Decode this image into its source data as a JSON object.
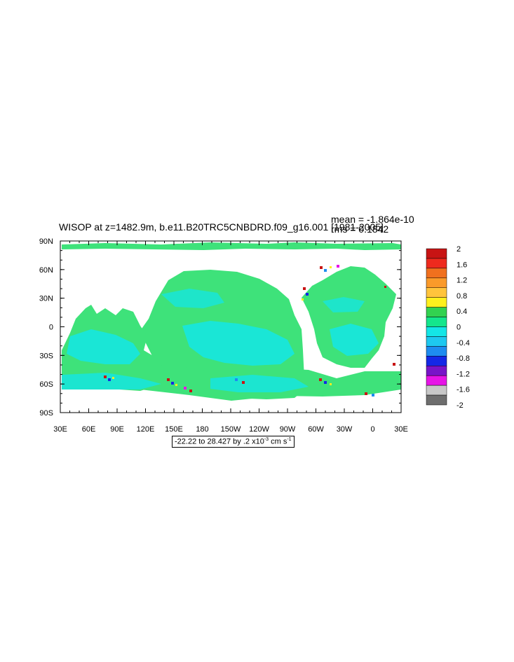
{
  "title": "WISOP at z=1482.9m, b.e11.B20TRC5CNBDRD.f09_g16.001 [1981-2005]",
  "stats": {
    "mean": "mean = -1.864e-10",
    "rms": "rms = 0.1842"
  },
  "axes": {
    "lat_labels": [
      "90N",
      "60N",
      "30N",
      "0",
      "30S",
      "60S",
      "90S"
    ],
    "lon_labels": [
      "30E",
      "60E",
      "90E",
      "120E",
      "150E",
      "180",
      "150W",
      "120W",
      "90W",
      "60W",
      "30W",
      "0",
      "30E"
    ]
  },
  "colorbar": {
    "labels": [
      "2",
      "1.6",
      "1.2",
      "0.8",
      "0.4",
      "0",
      "-0.4",
      "-0.8",
      "-1.2",
      "-1.6",
      "-2"
    ],
    "colors": [
      "#c81414",
      "#ee2a1e",
      "#f0701e",
      "#fa9a2a",
      "#ffc43c",
      "#fff01e",
      "#32d250",
      "#14e68c",
      "#14e6e6",
      "#1ec8f0",
      "#1e8cf0",
      "#1428e6",
      "#7814c8",
      "#e614e6",
      "#c8c8c8",
      "#6e6e6e"
    ]
  },
  "info": {
    "prefix": "-22.22 to 28.427 by .2 x10",
    "exponent": "-3",
    "unit": " cm s",
    "unit_exp": "-1"
  }
}
